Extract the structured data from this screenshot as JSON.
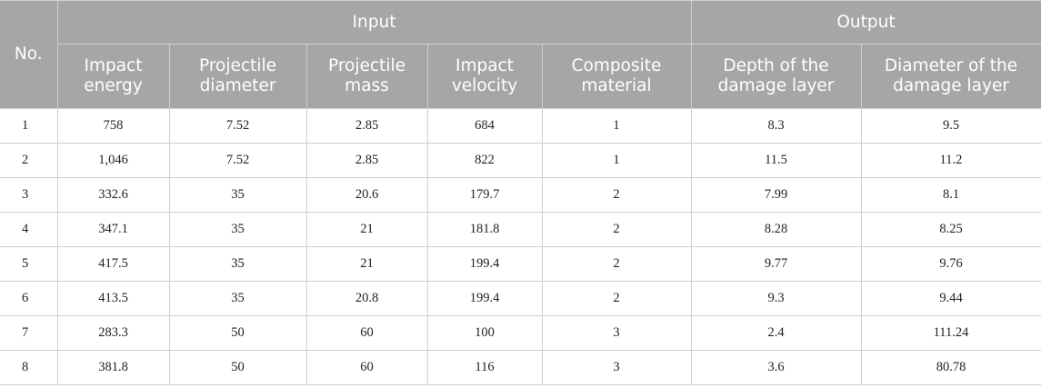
{
  "table": {
    "no_header": "No.",
    "input_header": "Input",
    "output_header": "Output",
    "columns": [
      "Impact energy",
      "Projectile diameter",
      "Projectile mass",
      "Impact velocity",
      "Composite material",
      "Depth of the damage layer",
      "Diameter of the damage layer"
    ],
    "rows": [
      [
        "1",
        "758",
        "7.52",
        "2.85",
        "684",
        "1",
        "8.3",
        "9.5"
      ],
      [
        "2",
        "1,046",
        "7.52",
        "2.85",
        "822",
        "1",
        "11.5",
        "11.2"
      ],
      [
        "3",
        "332.6",
        "35",
        "20.6",
        "179.7",
        "2",
        "7.99",
        "8.1"
      ],
      [
        "4",
        "347.1",
        "35",
        "21",
        "181.8",
        "2",
        "8.28",
        "8.25"
      ],
      [
        "5",
        "417.5",
        "35",
        "21",
        "199.4",
        "2",
        "9.77",
        "9.76"
      ],
      [
        "6",
        "413.5",
        "35",
        "20.8",
        "199.4",
        "2",
        "9.3",
        "9.44"
      ],
      [
        "7",
        "283.3",
        "50",
        "60",
        "100",
        "3",
        "2.4",
        "111.24"
      ],
      [
        "8",
        "381.8",
        "50",
        "60",
        "116",
        "3",
        "3.6",
        "80.78"
      ]
    ]
  }
}
